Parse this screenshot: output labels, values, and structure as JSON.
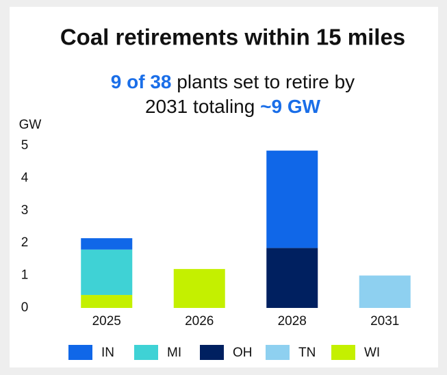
{
  "chart_data": {
    "type": "stacked_bar",
    "title": "Coal retirements within 15 miles",
    "subtitle": [
      [
        {
          "text": "9 of 38",
          "highlight": true
        },
        {
          "text": " plants set to retire by"
        }
      ],
      [
        {
          "text": "2031 totaling "
        },
        {
          "text": "~9 GW",
          "highlight": true
        }
      ]
    ],
    "highlight_color": "#1a6ee8",
    "y_label": "GW",
    "categories": [
      "2025",
      "2026",
      "2028",
      "2031"
    ],
    "series": [
      {
        "name": "IN",
        "color": "#1067e8",
        "values": [
          0.35,
          0,
          3.0,
          0
        ]
      },
      {
        "name": "MI",
        "color": "#3fd2d5",
        "values": [
          1.4,
          0,
          0,
          0
        ]
      },
      {
        "name": "OH",
        "color": "#002060",
        "values": [
          0,
          0,
          1.85,
          0
        ]
      },
      {
        "name": "TN",
        "color": "#8ed0f0",
        "values": [
          0,
          0,
          0,
          1.0
        ]
      },
      {
        "name": "WI",
        "color": "#c4f000",
        "values": [
          0.4,
          1.2,
          0,
          0
        ]
      }
    ],
    "ylim": [
      0,
      5
    ],
    "yticks": [
      0,
      1,
      2,
      3,
      4,
      5
    ],
    "grid": false
  }
}
